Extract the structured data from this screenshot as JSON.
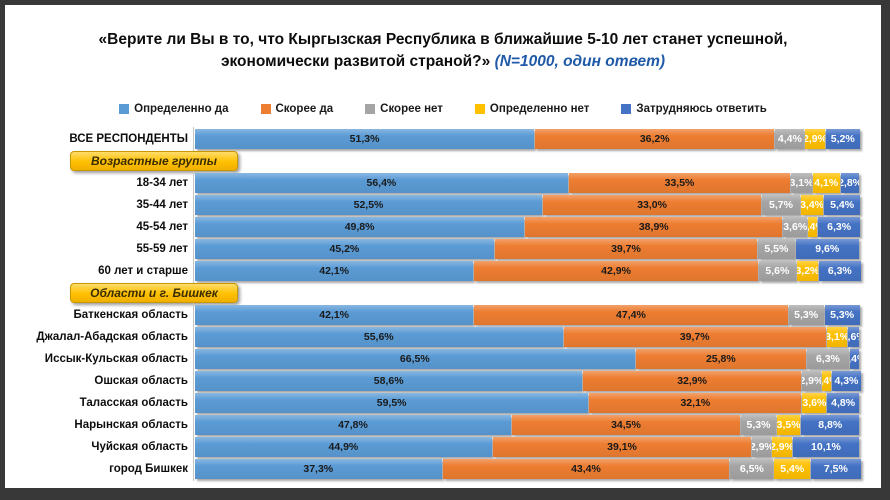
{
  "frame": {
    "border_color": "#383838",
    "background": "#ffffff"
  },
  "title": {
    "line1": "«Верите ли Вы в то, что Кыргызская Республика в ближайшие 5-10 лет станет успешной,",
    "line2": "экономически развитой страной?» ",
    "note": "(N=1000, один ответ)",
    "note_color": "#1F5AA8"
  },
  "legend": [
    {
      "name": "Определенно да",
      "color": "#5B9BD5"
    },
    {
      "name": "Скорее да",
      "color": "#ED7D31"
    },
    {
      "name": "Скорее нет",
      "color": "#A5A5A5"
    },
    {
      "name": "Определенно нет",
      "color": "#FFC000"
    },
    {
      "name": "Затрудняюсь ответить",
      "color": "#4472C4"
    }
  ],
  "chart_data": {
    "type": "bar",
    "subtype": "horizontal-stacked-100pct",
    "unit": "%",
    "xlim": [
      0,
      100
    ],
    "legend_position": "top",
    "series_names": [
      "Определенно да",
      "Скорее да",
      "Скорее нет",
      "Определенно нет",
      "Затрудняюсь ответить"
    ],
    "series_colors": [
      "#5B9BD5",
      "#ED7D31",
      "#A5A5A5",
      "#FFC000",
      "#4472C4"
    ],
    "rows": [
      {
        "type": "bar",
        "label": "ВСЕ РЕСПОНДЕНТЫ",
        "values": [
          51.3,
          36.2,
          4.4,
          2.9,
          5.2
        ],
        "value_labels": [
          "51,3%",
          "36,2%",
          "4,4%",
          "2,9%",
          "5,2%"
        ]
      },
      {
        "type": "section",
        "label": "Возрастные группы"
      },
      {
        "type": "bar",
        "label": "18-34 лет",
        "values": [
          56.4,
          33.5,
          3.1,
          4.1,
          2.8
        ],
        "value_labels": [
          "56,4%",
          "33,5%",
          "3,1%",
          "4,1%",
          "2,8%"
        ]
      },
      {
        "type": "bar",
        "label": "35-44 лет",
        "values": [
          52.5,
          33.0,
          5.7,
          3.4,
          5.4
        ],
        "value_labels": [
          "52,5%",
          "33,0%",
          "5,7%",
          "3,4%",
          "5,4%"
        ]
      },
      {
        "type": "bar",
        "label": "45-54 лет",
        "values": [
          49.8,
          38.9,
          3.6,
          1.4,
          6.3
        ],
        "value_labels": [
          "49,8%",
          "38,9%",
          "3,6%",
          "1,4%",
          "6,3%"
        ]
      },
      {
        "type": "bar",
        "label": "55-59 лет",
        "values": [
          45.2,
          39.7,
          5.5,
          0,
          9.6
        ],
        "value_labels": [
          "45,2%",
          "39,7%",
          "5,5%",
          "",
          "9,6%"
        ]
      },
      {
        "type": "bar",
        "label": "60 лет и старше",
        "values": [
          42.1,
          42.9,
          5.6,
          3.2,
          6.3
        ],
        "value_labels": [
          "42,1%",
          "42,9%",
          "5,6%",
          "3,2%",
          "6,3%"
        ]
      },
      {
        "type": "section",
        "label": "Области и г. Бишкек"
      },
      {
        "type": "bar",
        "label": "Баткенская область",
        "values": [
          42.1,
          47.4,
          5.3,
          0,
          5.3
        ],
        "value_labels": [
          "42,1%",
          "47,4%",
          "5,3%",
          "",
          "5,3%"
        ]
      },
      {
        "type": "bar",
        "label": "Джалал-Абадская область",
        "values": [
          55.6,
          39.7,
          0,
          3.1,
          1.6
        ],
        "value_labels": [
          "55,6%",
          "39,7%",
          "",
          "3,1%",
          "1,6%"
        ]
      },
      {
        "type": "bar",
        "label": "Иссык-Кульская область",
        "values": [
          66.5,
          25.8,
          6.3,
          0,
          1.4
        ],
        "value_labels": [
          "66,5%",
          "25,8%",
          "6,3%",
          "",
          "1,4%"
        ]
      },
      {
        "type": "bar",
        "label": "Ошская область",
        "values": [
          58.6,
          32.9,
          2.9,
          1.4,
          4.3
        ],
        "value_labels": [
          "58,6%",
          "32,9%",
          "2,9%",
          "1,4%",
          "4,3%"
        ]
      },
      {
        "type": "bar",
        "label": "Таласская область",
        "values": [
          59.5,
          32.1,
          0,
          3.6,
          4.8
        ],
        "value_labels": [
          "59,5%",
          "32,1%",
          "",
          "3,6%",
          "4,8%"
        ]
      },
      {
        "type": "bar",
        "label": "Нарынская область",
        "values": [
          47.8,
          34.5,
          5.3,
          3.5,
          8.8
        ],
        "value_labels": [
          "47,8%",
          "34,5%",
          "5,3%",
          "3,5%",
          "8,8%"
        ]
      },
      {
        "type": "bar",
        "label": "Чуйская область",
        "values": [
          44.9,
          39.1,
          2.9,
          2.9,
          10.1
        ],
        "value_labels": [
          "44,9%",
          "39,1%",
          "2,9%",
          "2,9%",
          "10,1%"
        ]
      },
      {
        "type": "bar",
        "label": "город Бишкек",
        "values": [
          37.3,
          43.4,
          6.5,
          5.4,
          7.5
        ],
        "value_labels": [
          "37,3%",
          "43,4%",
          "6,5%",
          "5,4%",
          "7,5%"
        ]
      }
    ]
  }
}
